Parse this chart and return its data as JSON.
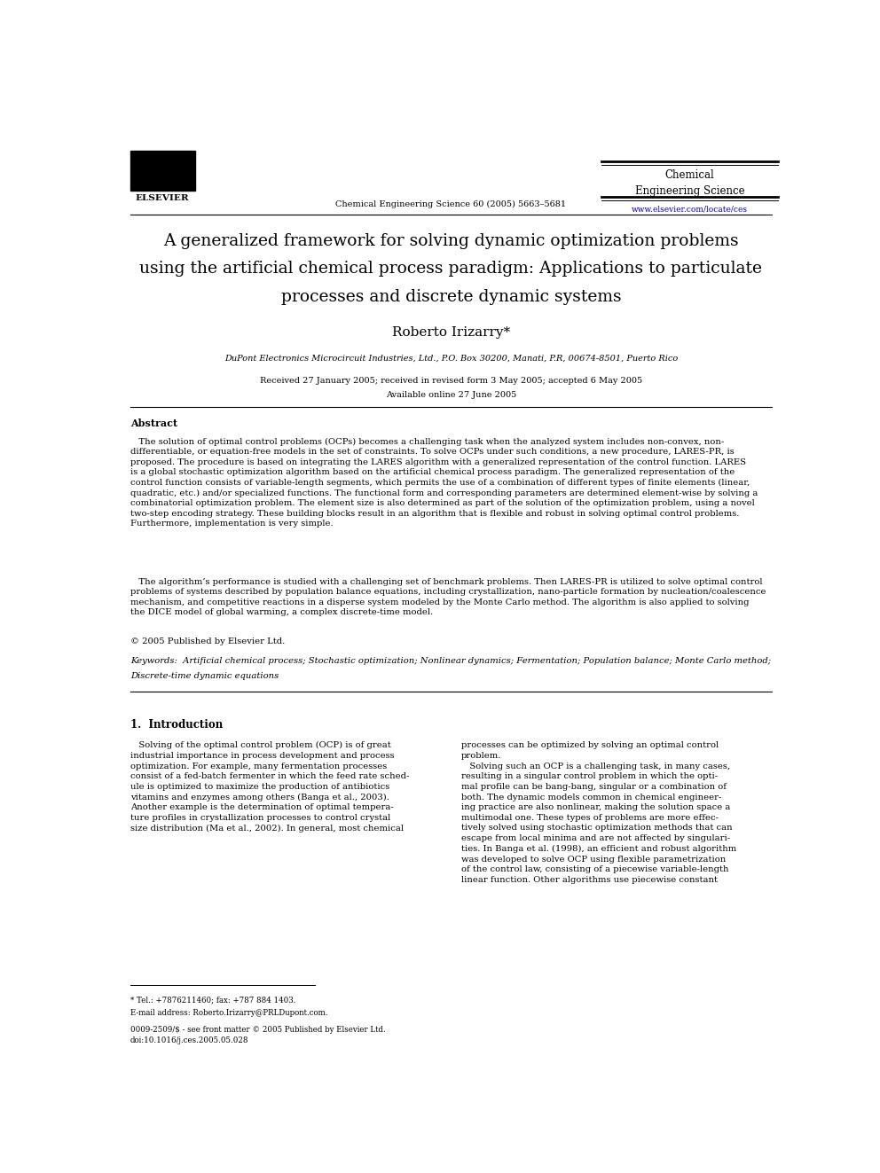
{
  "bg_color": "#ffffff",
  "page_width": 9.92,
  "page_height": 13.23,
  "dpi": 100,
  "journal_name": "Chemical\nEngineering Science",
  "journal_ref": "Chemical Engineering Science 60 (2005) 5663–5681",
  "journal_url": "www.elsevier.com/locate/ces",
  "paper_title_line1": "A generalized framework for solving dynamic optimization problems",
  "paper_title_line2": "using the artificial chemical process paradigm: Applications to particulate",
  "paper_title_line3": "processes and discrete dynamic systems",
  "author": "Roberto Irizarry*",
  "affiliation": "DuPont Electronics Microcircuit Industries, Ltd., P.O. Box 30200, Manati, P.R, 00674-8501, Puerto Rico",
  "received_dates": "Received 27 January 2005; received in revised form 3 May 2005; accepted 6 May 2005",
  "available_online": "Available online 27 June 2005",
  "abstract_title": "Abstract",
  "abstract_para1": "   The solution of optimal control problems (OCPs) becomes a challenging task when the analyzed system includes non-convex, non-\ndifferentiable, or equation-free models in the set of constraints. To solve OCPs under such conditions, a new procedure, LARES-PR, is\nproposed. The procedure is based on integrating the LARES algorithm with a generalized representation of the control function. LARES\nis a global stochastic optimization algorithm based on the artificial chemical process paradigm. The generalized representation of the\ncontrol function consists of variable-length segments, which permits the use of a combination of different types of finite elements (linear,\nquadratic, etc.) and/or specialized functions. The functional form and corresponding parameters are determined element-wise by solving a\ncombinatorial optimization problem. The element size is also determined as part of the solution of the optimization problem, using a novel\ntwo-step encoding strategy. These building blocks result in an algorithm that is flexible and robust in solving optimal control problems.\nFurthermore, implementation is very simple.",
  "abstract_para2": "   The algorithm’s performance is studied with a challenging set of benchmark problems. Then LARES-PR is utilized to solve optimal control\nproblems of systems described by population balance equations, including crystallization, nano-particle formation by nucleation/coalescence\nmechanism, and competitive reactions in a disperse system modeled by the Monte Carlo method. The algorithm is also applied to solving\nthe DICE model of global warming, a complex discrete-time model.",
  "copyright_line": "© 2005 Published by Elsevier Ltd.",
  "keywords_line1": "Keywords:  Artificial chemical process; Stochastic optimization; Nonlinear dynamics; Fermentation; Population balance; Monte Carlo method;",
  "keywords_line2": "Discrete-time dynamic equations",
  "section1_heading": "1.  Introduction",
  "col1_text": "   Solving of the optimal control problem (OCP) is of great\nindustrial importance in process development and process\noptimization. For example, many fermentation processes\nconsist of a fed-batch fermenter in which the feed rate sched-\nule is optimized to maximize the production of antibiotics\nvitamins and enzymes among others (Banga et al., 2003).\nAnother example is the determination of optimal tempera-\nture profiles in crystallization processes to control crystal\nsize distribution (Ma et al., 2002). In general, most chemical",
  "col2_text": "processes can be optimized by solving an optimal control\nproblem.\n   Solving such an OCP is a challenging task, in many cases,\nresulting in a singular control problem in which the opti-\nmal profile can be bang-bang, singular or a combination of\nboth. The dynamic models common in chemical engineer-\ning practice are also nonlinear, making the solution space a\nmultimodal one. These types of problems are more effec-\ntively solved using stochastic optimization methods that can\nescape from local minima and are not affected by singulari-\nties. In Banga et al. (1998), an efficient and robust algorithm\nwas developed to solve OCP using flexible parametrization\nof the control law, consisting of a piecewise variable-length\nlinear function. Other algorithms use piecewise constant",
  "footnote_tel": "* Tel.: +7876211460; fax: +787 884 1403.",
  "footnote_email": "E-mail address: Roberto.Irizarry@PRLDupont.com.",
  "copyright_bottom": "0009-2509/$ - see front matter © 2005 Published by Elsevier Ltd.",
  "doi": "doi:10.1016/j.ces.2005.05.028"
}
